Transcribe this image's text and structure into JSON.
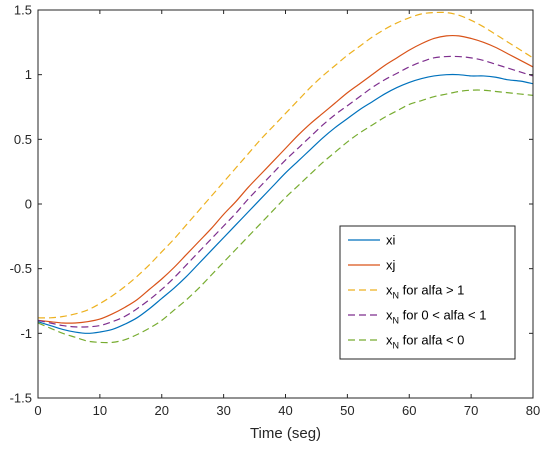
{
  "chart_data": {
    "type": "line",
    "title": "",
    "xlabel": "Time (seg)",
    "ylabel": "",
    "xlim": [
      0,
      80
    ],
    "ylim": [
      -1.5,
      1.5
    ],
    "x_ticks": [
      0,
      10,
      20,
      30,
      40,
      50,
      60,
      70,
      80
    ],
    "y_ticks": [
      -1.5,
      -1,
      -0.5,
      0,
      0.5,
      1,
      1.5
    ],
    "x_tick_labels": [
      "0",
      "10",
      "20",
      "30",
      "40",
      "50",
      "60",
      "70",
      "80"
    ],
    "y_tick_labels": [
      "-1.5",
      "-1",
      "-0.5",
      "0",
      "0.5",
      "1",
      "1.5"
    ],
    "grid": false,
    "legend_position": "lower-right",
    "x": [
      0,
      2,
      4,
      6,
      8,
      10,
      12,
      14,
      16,
      18,
      20,
      22,
      24,
      26,
      28,
      30,
      32,
      34,
      36,
      38,
      40,
      42,
      44,
      46,
      48,
      50,
      52,
      54,
      56,
      58,
      60,
      62,
      64,
      66,
      68,
      70,
      72,
      74,
      76,
      78,
      80
    ],
    "series": [
      {
        "name": "xi",
        "name_main": "xi",
        "name_sub": "",
        "name_rest": "",
        "color": "#0072BD",
        "dash": "solid",
        "values": [
          -0.91,
          -0.94,
          -0.97,
          -0.99,
          -1.0,
          -0.99,
          -0.97,
          -0.93,
          -0.88,
          -0.81,
          -0.73,
          -0.65,
          -0.56,
          -0.46,
          -0.36,
          -0.26,
          -0.16,
          -0.06,
          0.04,
          0.14,
          0.24,
          0.33,
          0.42,
          0.51,
          0.59,
          0.66,
          0.73,
          0.79,
          0.85,
          0.9,
          0.94,
          0.97,
          0.99,
          1.0,
          1.0,
          0.99,
          0.99,
          0.98,
          0.96,
          0.95,
          0.93
        ]
      },
      {
        "name": "xj",
        "name_main": "xj",
        "name_sub": "",
        "name_rest": "",
        "color": "#D95319",
        "dash": "solid",
        "values": [
          -0.9,
          -0.91,
          -0.92,
          -0.92,
          -0.91,
          -0.89,
          -0.85,
          -0.8,
          -0.74,
          -0.66,
          -0.58,
          -0.49,
          -0.39,
          -0.29,
          -0.19,
          -0.08,
          0.02,
          0.13,
          0.23,
          0.33,
          0.43,
          0.53,
          0.62,
          0.7,
          0.78,
          0.86,
          0.93,
          1.0,
          1.07,
          1.13,
          1.19,
          1.24,
          1.28,
          1.3,
          1.3,
          1.28,
          1.25,
          1.21,
          1.16,
          1.11,
          1.06
        ]
      },
      {
        "name": "xN for alfa > 1",
        "name_main": "x",
        "name_sub": "N",
        "name_rest": " for alfa > 1",
        "color": "#EDB120",
        "dash": "dashed",
        "values": [
          -0.88,
          -0.88,
          -0.87,
          -0.85,
          -0.82,
          -0.77,
          -0.71,
          -0.64,
          -0.56,
          -0.47,
          -0.37,
          -0.27,
          -0.16,
          -0.05,
          0.06,
          0.17,
          0.28,
          0.39,
          0.5,
          0.6,
          0.7,
          0.8,
          0.9,
          0.99,
          1.07,
          1.15,
          1.22,
          1.29,
          1.35,
          1.4,
          1.44,
          1.47,
          1.48,
          1.48,
          1.46,
          1.42,
          1.37,
          1.31,
          1.25,
          1.19,
          1.13
        ]
      },
      {
        "name": "xN for 0 < alfa < 1",
        "name_main": "x",
        "name_sub": "N",
        "name_rest": " for 0 < alfa < 1",
        "color": "#7E2F8E",
        "dash": "dashed",
        "values": [
          -0.9,
          -0.92,
          -0.94,
          -0.95,
          -0.95,
          -0.94,
          -0.91,
          -0.87,
          -0.81,
          -0.74,
          -0.66,
          -0.57,
          -0.47,
          -0.37,
          -0.27,
          -0.17,
          -0.07,
          0.04,
          0.14,
          0.24,
          0.34,
          0.43,
          0.52,
          0.61,
          0.69,
          0.76,
          0.83,
          0.9,
          0.96,
          1.01,
          1.06,
          1.1,
          1.13,
          1.14,
          1.14,
          1.13,
          1.11,
          1.08,
          1.05,
          1.02,
          0.99
        ]
      },
      {
        "name": "xN for alfa < 0",
        "name_main": "x",
        "name_sub": "N",
        "name_rest": " for alfa < 0",
        "color": "#77AC30",
        "dash": "dashed",
        "values": [
          -0.92,
          -0.96,
          -1.0,
          -1.03,
          -1.06,
          -1.07,
          -1.07,
          -1.05,
          -1.01,
          -0.96,
          -0.9,
          -0.82,
          -0.74,
          -0.65,
          -0.55,
          -0.45,
          -0.35,
          -0.25,
          -0.15,
          -0.05,
          0.05,
          0.14,
          0.23,
          0.32,
          0.4,
          0.48,
          0.55,
          0.61,
          0.67,
          0.72,
          0.77,
          0.8,
          0.83,
          0.85,
          0.87,
          0.88,
          0.88,
          0.87,
          0.86,
          0.85,
          0.84
        ]
      }
    ]
  }
}
